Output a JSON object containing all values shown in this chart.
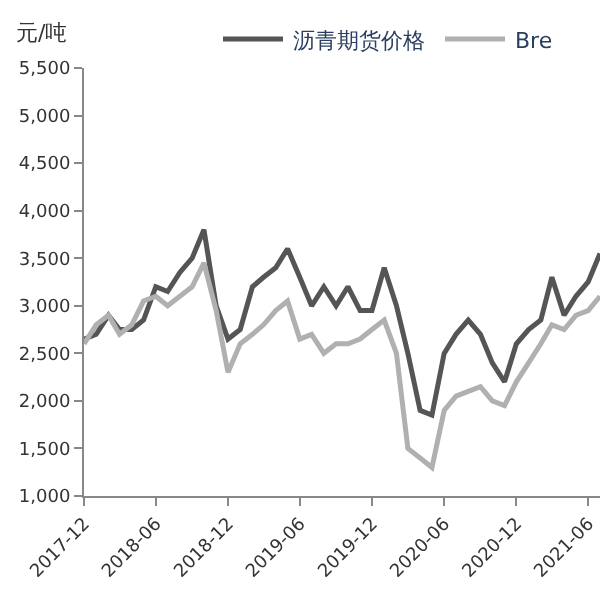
{
  "chart_data": {
    "type": "line",
    "ylabel": "元/吨",
    "x": [
      "2017-12",
      "2018-01",
      "2018-02",
      "2018-03",
      "2018-04",
      "2018-05",
      "2018-06",
      "2018-07",
      "2018-08",
      "2018-09",
      "2018-10",
      "2018-11",
      "2018-12",
      "2019-01",
      "2019-02",
      "2019-03",
      "2019-04",
      "2019-05",
      "2019-06",
      "2019-07",
      "2019-08",
      "2019-09",
      "2019-10",
      "2019-11",
      "2019-12",
      "2020-01",
      "2020-02",
      "2020-03",
      "2020-04",
      "2020-05",
      "2020-06",
      "2020-07",
      "2020-08",
      "2020-09",
      "2020-10",
      "2020-11",
      "2020-12",
      "2021-01",
      "2021-02",
      "2021-03",
      "2021-04",
      "2021-05",
      "2021-06",
      "2021-07"
    ],
    "series": [
      {
        "name": "沥青期货价格",
        "color": "#555555",
        "values": [
          2650,
          2700,
          2900,
          2750,
          2750,
          2850,
          3200,
          3150,
          3350,
          3500,
          3800,
          3000,
          2650,
          2750,
          3200,
          3300,
          3400,
          3600,
          3300,
          3000,
          3200,
          3000,
          3200,
          2950,
          2950,
          3400,
          3000,
          2500,
          1900,
          1850,
          2500,
          2700,
          2850,
          2700,
          2400,
          2200,
          2600,
          2750,
          2850,
          3300,
          2900,
          3100,
          3250,
          3550
        ]
      },
      {
        "name": "Bre",
        "color": "#b0b0b0",
        "values": [
          2600,
          2800,
          2900,
          2700,
          2800,
          3050,
          3100,
          3000,
          3100,
          3200,
          3450,
          2950,
          2300,
          2600,
          2700,
          2800,
          2950,
          3050,
          2650,
          2700,
          2500,
          2600,
          2600,
          2650,
          2750,
          2850,
          2500,
          1500,
          1400,
          1300,
          1900,
          2050,
          2100,
          2150,
          2000,
          1950,
          2200,
          2400,
          2600,
          2800,
          2750,
          2900,
          2950,
          3100
        ]
      }
    ],
    "xlim": [
      "2017-12",
      "2021-07"
    ],
    "xticks": [
      "2017-12",
      "2018-06",
      "2018-12",
      "2019-06",
      "2019-12",
      "2020-06",
      "2020-12",
      "2021-06"
    ],
    "ylim": [
      1000,
      5500
    ],
    "yticks": [
      {
        "value": 1000,
        "label": "1,000"
      },
      {
        "value": 1500,
        "label": "1,500"
      },
      {
        "value": 2000,
        "label": "2,000"
      },
      {
        "value": 2500,
        "label": "2,500"
      },
      {
        "value": 3000,
        "label": "3,000"
      },
      {
        "value": 3500,
        "label": "3,500"
      },
      {
        "value": 4000,
        "label": "4,000"
      },
      {
        "value": 4500,
        "label": "4,500"
      },
      {
        "value": 5000,
        "label": "5,000"
      },
      {
        "value": 5500,
        "label": "5,500"
      }
    ],
    "legend": "top",
    "marker": "none",
    "line_style": "solid"
  }
}
